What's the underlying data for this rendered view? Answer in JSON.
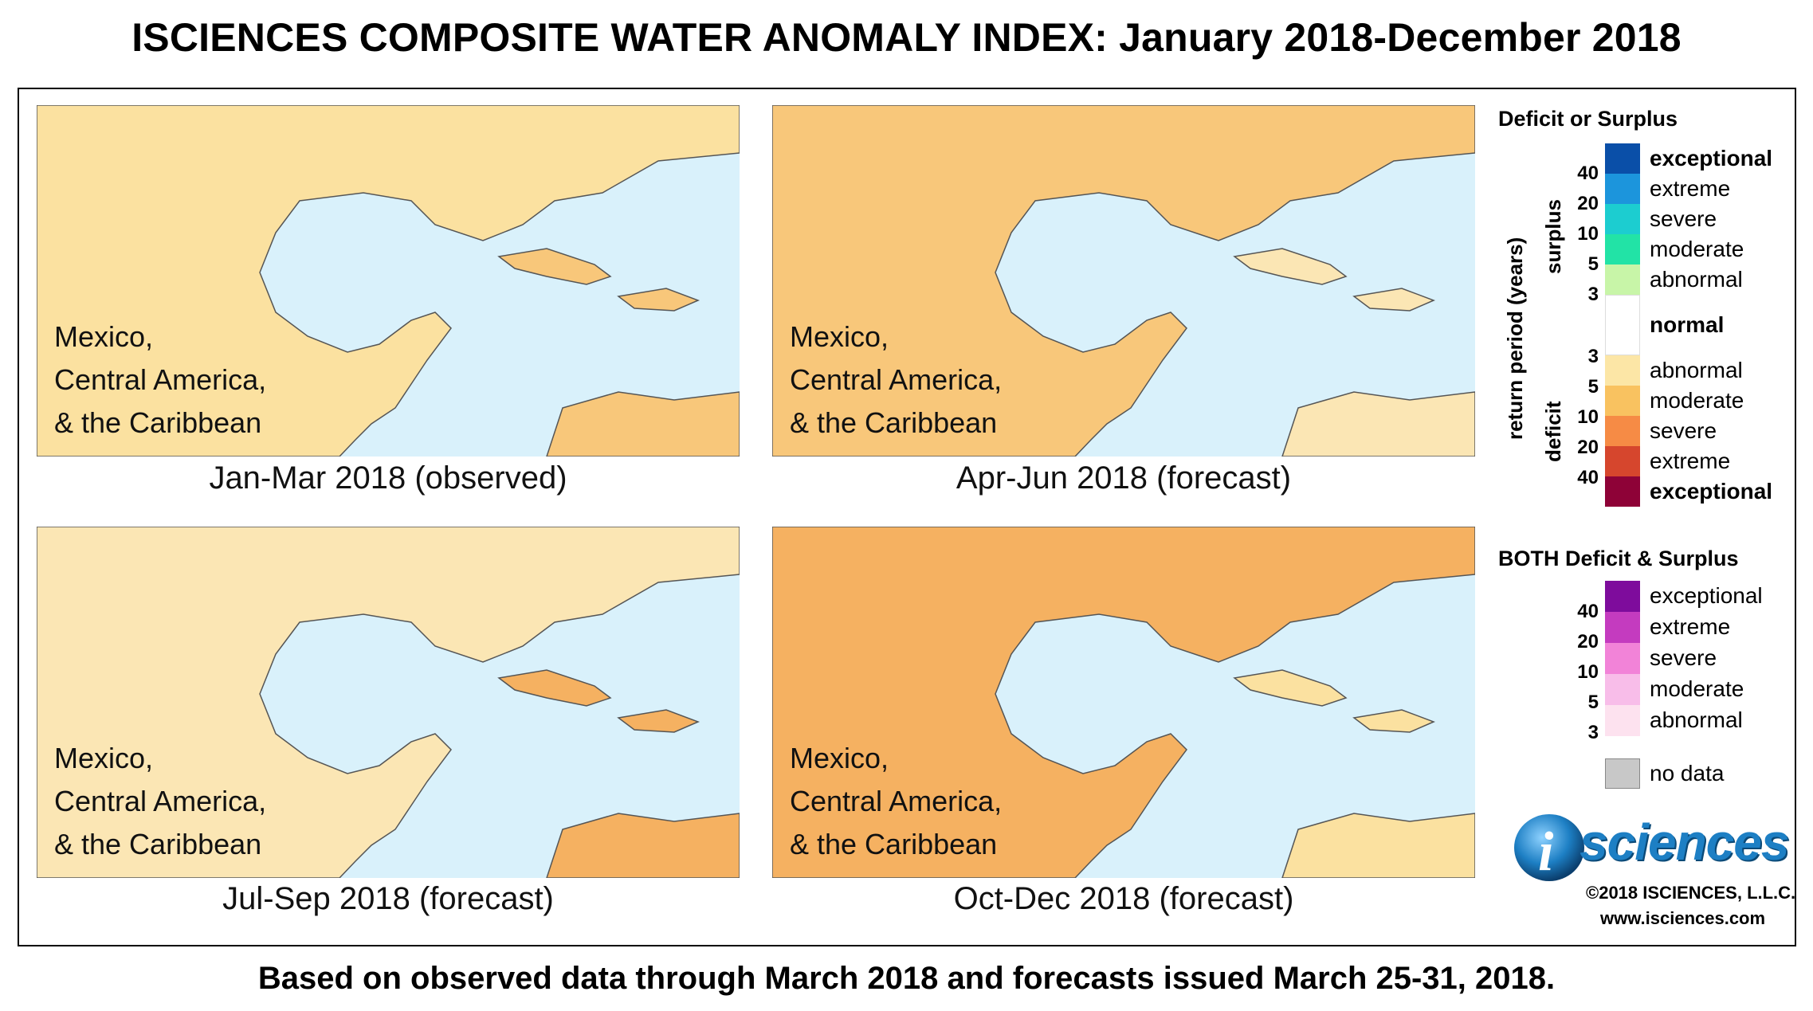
{
  "title": "ISCIENCES COMPOSITE WATER ANOMALY INDEX: January 2018-December 2018",
  "footer": "Based on observed data through March 2018 and forecasts issued March 25-31, 2018.",
  "maps": [
    {
      "region_lines": [
        "Mexico,",
        "Central America,",
        "& the Caribbean"
      ],
      "caption": "Jan-Mar 2018 (observed)"
    },
    {
      "region_lines": [
        "Mexico,",
        "Central America,",
        "& the Caribbean"
      ],
      "caption": "Apr-Jun 2018 (forecast)"
    },
    {
      "region_lines": [
        "Mexico,",
        "Central America,",
        "& the Caribbean"
      ],
      "caption": "Jul-Sep 2018 (forecast)"
    },
    {
      "region_lines": [
        "Mexico,",
        "Central America,",
        "& the Caribbean"
      ],
      "caption": "Oct-Dec 2018 (forecast)"
    }
  ],
  "legend": {
    "deficit_surplus_heading": "Deficit or Surplus",
    "axis_label": "return period (years)",
    "surplus_label": "surplus",
    "deficit_label": "deficit",
    "surplus_numbers": [
      "40",
      "20",
      "10",
      "5",
      "3"
    ],
    "deficit_numbers": [
      "3",
      "5",
      "10",
      "20",
      "40"
    ],
    "surplus_classes": [
      {
        "label": "exceptional",
        "color": "#0a4fa8",
        "bold": true
      },
      {
        "label": "extreme",
        "color": "#1c95dc",
        "bold": false
      },
      {
        "label": "severe",
        "color": "#1ccdd0",
        "bold": false
      },
      {
        "label": "moderate",
        "color": "#22e3a6",
        "bold": false
      },
      {
        "label": "abnormal",
        "color": "#c8f5a8",
        "bold": false
      }
    ],
    "normal": {
      "label": "normal",
      "color": "#ffffff"
    },
    "deficit_classes": [
      {
        "label": "abnormal",
        "color": "#fce6a6",
        "bold": false
      },
      {
        "label": "moderate",
        "color": "#f9c260",
        "bold": false
      },
      {
        "label": "severe",
        "color": "#f68b45",
        "bold": false
      },
      {
        "label": "extreme",
        "color": "#d6462d",
        "bold": false
      },
      {
        "label": "exceptional",
        "color": "#8e0237",
        "bold": true
      }
    ],
    "both_heading": "BOTH Deficit & Surplus",
    "both_numbers": [
      "40",
      "20",
      "10",
      "5",
      "3"
    ],
    "both_classes": [
      {
        "label": "exceptional",
        "color": "#7e0c9c"
      },
      {
        "label": "extreme",
        "color": "#c43bbf"
      },
      {
        "label": "severe",
        "color": "#f283d8"
      },
      {
        "label": "moderate",
        "color": "#f8bde9"
      },
      {
        "label": "abnormal",
        "color": "#fde2ef"
      }
    ],
    "no_data": {
      "label": "no data",
      "color": "#c8c8c8"
    }
  },
  "logo": {
    "letter": "i",
    "text": "sciences"
  },
  "copyright": "©2018 ISCIENCES, L.L.C.",
  "website": "www.isciences.com"
}
